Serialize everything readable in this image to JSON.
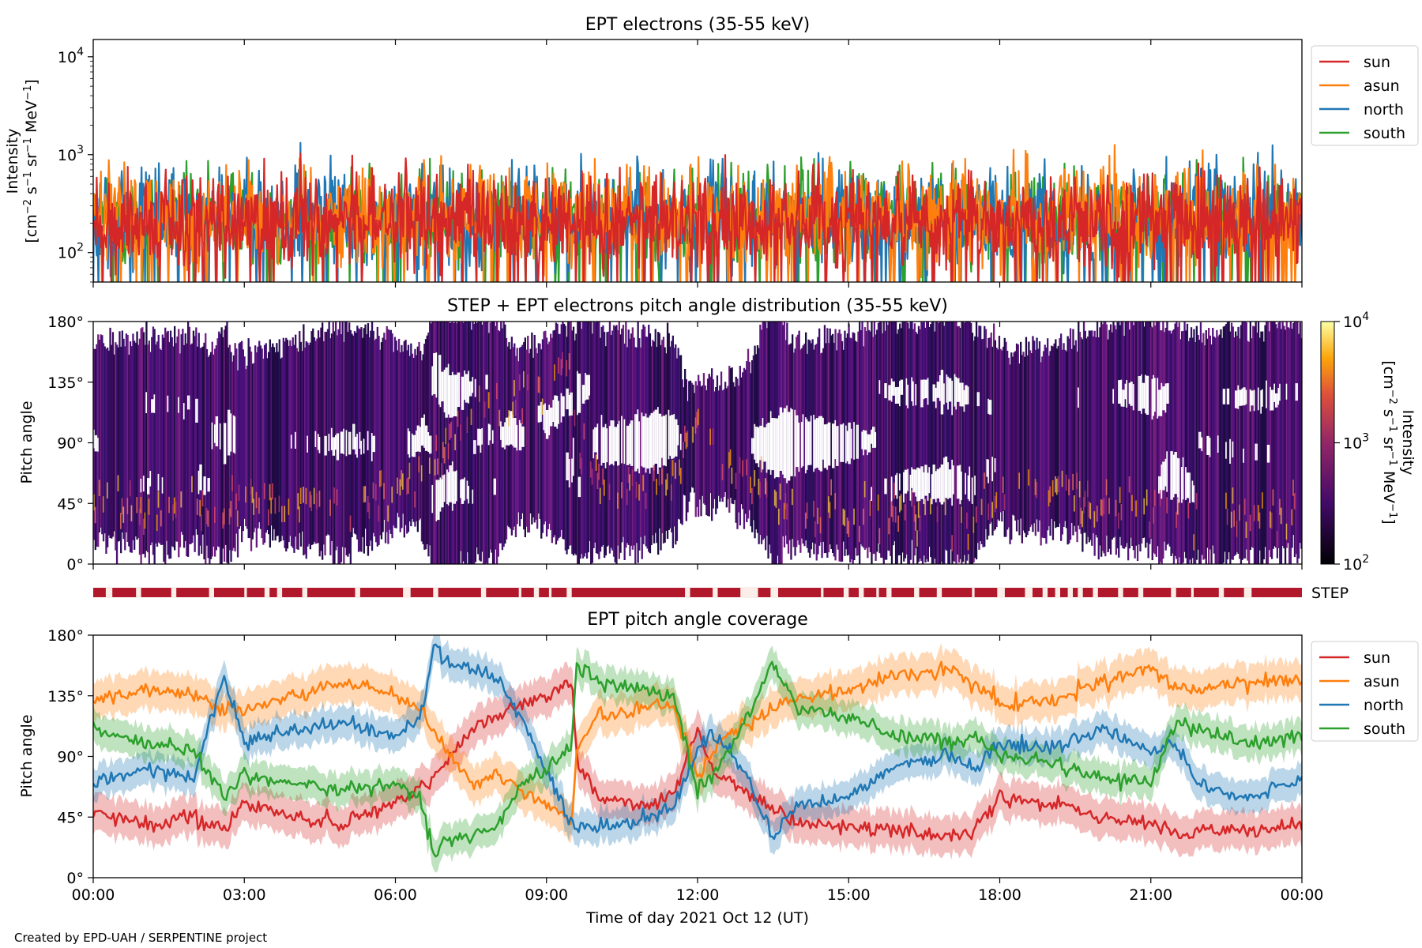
{
  "figure": {
    "credit": "Created by EPD-UAH / SERPENTINE project",
    "xlabel": "Time of day 2021 Oct 12 (UT)"
  },
  "colors": {
    "sun": "#d62728",
    "asun": "#ff7f0e",
    "north": "#1f77b4",
    "south": "#2ca02c",
    "step_bar": "#b2182b",
    "step_gap": "#fbeee8"
  },
  "chart_data": [
    {
      "type": "line",
      "title": "EPT electrons (35-55 keV)",
      "ylabel_line1": "Intensity",
      "ylabel_line2_html": "[cm<tspan dy='-7' font-size='13'>−2</tspan><tspan dy='7'> s</tspan><tspan dy='-7' font-size='13'>−1</tspan><tspan dy='7'> sr</tspan><tspan dy='-7' font-size='13'>−1</tspan><tspan dy='7'> MeV</tspan><tspan dy='-7' font-size='13'>−1</tspan><tspan dy='7'>]</tspan>",
      "yscale": "log",
      "ylim": [
        50,
        15000
      ],
      "yticks": [
        100,
        1000,
        10000
      ],
      "ytick_labels": [
        "10",
        "10",
        "10"
      ],
      "ytick_exps": [
        "2",
        "3",
        "4"
      ],
      "xlim_hours": [
        0,
        24
      ],
      "legend": {
        "placement": "upper-right-outside",
        "entries": [
          "sun",
          "asun",
          "north",
          "south"
        ]
      },
      "series": [
        {
          "name": "sun",
          "typical": 220,
          "spread": 0.32
        },
        {
          "name": "asun",
          "typical": 240,
          "spread": 0.33
        },
        {
          "name": "north",
          "typical": 230,
          "spread": 0.33
        },
        {
          "name": "south",
          "typical": 230,
          "spread": 0.32
        }
      ]
    },
    {
      "type": "heatmap",
      "title": "STEP + EPT electrons pitch angle distribution (35-55 keV)",
      "ylabel": "Pitch angle",
      "ylim": [
        0,
        180
      ],
      "ytick_labels": [
        "0°",
        "45°",
        "90°",
        "135°",
        "180°"
      ],
      "xlim_hours": [
        0,
        24
      ],
      "colorbar": {
        "label": "Intensity",
        "units_html": "[cm<tspan dy='-7' font-size='13'>−2</tspan><tspan dy='7'> s</tspan><tspan dy='-7' font-size='13'>−1</tspan><tspan dy='7'> sr</tspan><tspan dy='-7' font-size='13'>−1</tspan><tspan dy='7'> MeV</tspan><tspan dy='-7' font-size='13'>−1</tspan><tspan dy='7'>]</tspan>",
        "scale": "log",
        "range": [
          100,
          10000
        ],
        "tick_base": [
          "10",
          "10",
          "10"
        ],
        "tick_exps": [
          "2",
          "3",
          "4"
        ],
        "colormap": "inferno"
      }
    },
    {
      "type": "bar",
      "label": "STEP",
      "coverage_gaps_hours": [
        [
          0.25,
          0.38
        ],
        [
          0.85,
          0.95
        ],
        [
          1.55,
          1.65
        ],
        [
          2.3,
          2.4
        ],
        [
          3.0,
          3.05
        ],
        [
          3.4,
          3.5
        ],
        [
          3.65,
          3.75
        ],
        [
          4.15,
          4.25
        ],
        [
          5.2,
          5.3
        ],
        [
          6.15,
          6.3
        ],
        [
          6.75,
          6.85
        ],
        [
          7.7,
          7.8
        ],
        [
          8.45,
          8.5
        ],
        [
          8.75,
          8.85
        ],
        [
          9.05,
          9.1
        ],
        [
          9.4,
          9.5
        ],
        [
          11.75,
          11.85
        ],
        [
          12.3,
          12.4
        ],
        [
          12.85,
          13.2
        ],
        [
          13.45,
          13.6
        ],
        [
          14.45,
          14.5
        ],
        [
          14.9,
          15.0
        ],
        [
          15.2,
          15.3
        ],
        [
          15.55,
          15.6
        ],
        [
          15.75,
          15.85
        ],
        [
          16.3,
          16.4
        ],
        [
          16.75,
          16.85
        ],
        [
          17.45,
          17.5
        ],
        [
          17.95,
          18.1
        ],
        [
          18.5,
          18.65
        ],
        [
          18.85,
          18.95
        ],
        [
          19.1,
          19.2
        ],
        [
          19.35,
          19.45
        ],
        [
          19.55,
          19.65
        ],
        [
          19.85,
          19.95
        ],
        [
          20.35,
          20.45
        ],
        [
          20.75,
          20.85
        ],
        [
          21.4,
          21.5
        ],
        [
          21.8,
          21.85
        ],
        [
          22.35,
          22.45
        ],
        [
          22.85,
          23.0
        ]
      ]
    },
    {
      "type": "line",
      "title": "EPT pitch angle coverage",
      "ylabel": "Pitch angle",
      "ylim": [
        0,
        180
      ],
      "ytick_labels": [
        "0°",
        "45°",
        "90°",
        "135°",
        "180°"
      ],
      "xlim_hours": [
        0,
        24
      ],
      "xtick_labels": [
        "00:00",
        "03:00",
        "06:00",
        "09:00",
        "12:00",
        "15:00",
        "18:00",
        "21:00",
        "00:00"
      ],
      "xlabel": "Time of day 2021 Oct 12 (UT)",
      "legend": {
        "placement": "upper-right-outside",
        "entries": [
          "sun",
          "asun",
          "north",
          "south"
        ]
      },
      "series": [
        {
          "name": "sun",
          "band_halfwidth": 14,
          "points": [
            [
              0,
              50
            ],
            [
              1,
              40
            ],
            [
              2,
              45
            ],
            [
              2.6,
              35
            ],
            [
              3,
              55
            ],
            [
              4,
              45
            ],
            [
              5,
              40
            ],
            [
              6,
              55
            ],
            [
              6.5,
              65
            ],
            [
              7,
              85
            ],
            [
              7.5,
              110
            ],
            [
              8,
              120
            ],
            [
              8.5,
              130
            ],
            [
              9,
              135
            ],
            [
              9.5,
              145
            ],
            [
              9.6,
              90
            ],
            [
              10,
              60
            ],
            [
              11,
              55
            ],
            [
              11.5,
              60
            ],
            [
              12,
              110
            ],
            [
              12.3,
              80
            ],
            [
              13,
              60
            ],
            [
              13.5,
              50
            ],
            [
              14,
              40
            ],
            [
              15,
              38
            ],
            [
              16,
              35
            ],
            [
              17,
              30
            ],
            [
              17.5,
              35
            ],
            [
              18,
              60
            ],
            [
              19,
              55
            ],
            [
              20,
              45
            ],
            [
              21,
              40
            ],
            [
              21.5,
              30
            ],
            [
              22,
              35
            ],
            [
              23,
              35
            ],
            [
              24,
              40
            ]
          ]
        },
        {
          "name": "asun",
          "band_halfwidth": 14,
          "points": [
            [
              0,
              130
            ],
            [
              1,
              140
            ],
            [
              2,
              135
            ],
            [
              2.6,
              125
            ],
            [
              3,
              125
            ],
            [
              4,
              135
            ],
            [
              5,
              145
            ],
            [
              6,
              135
            ],
            [
              6.5,
              125
            ],
            [
              7,
              95
            ],
            [
              7.5,
              70
            ],
            [
              8,
              75
            ],
            [
              8.5,
              65
            ],
            [
              9,
              55
            ],
            [
              9.5,
              40
            ],
            [
              9.6,
              95
            ],
            [
              10,
              120
            ],
            [
              11,
              125
            ],
            [
              11.5,
              130
            ],
            [
              12,
              75
            ],
            [
              12.3,
              95
            ],
            [
              13,
              115
            ],
            [
              13.5,
              125
            ],
            [
              14,
              135
            ],
            [
              15,
              140
            ],
            [
              16,
              150
            ],
            [
              17,
              155
            ],
            [
              17.5,
              145
            ],
            [
              18,
              130
            ],
            [
              19,
              130
            ],
            [
              20,
              145
            ],
            [
              21,
              155
            ],
            [
              21.5,
              140
            ],
            [
              22,
              140
            ],
            [
              23,
              145
            ],
            [
              24,
              145
            ]
          ]
        },
        {
          "name": "north",
          "band_halfwidth": 12,
          "points": [
            [
              0,
              70
            ],
            [
              1,
              80
            ],
            [
              2,
              75
            ],
            [
              2.6,
              150
            ],
            [
              3,
              100
            ],
            [
              4,
              110
            ],
            [
              5,
              115
            ],
            [
              6,
              105
            ],
            [
              6.5,
              120
            ],
            [
              6.8,
              175
            ],
            [
              7,
              160
            ],
            [
              7.5,
              155
            ],
            [
              8,
              150
            ],
            [
              8.5,
              120
            ],
            [
              9,
              80
            ],
            [
              9.5,
              40
            ],
            [
              10,
              35
            ],
            [
              11,
              45
            ],
            [
              11.5,
              50
            ],
            [
              12,
              95
            ],
            [
              12.3,
              110
            ],
            [
              13,
              75
            ],
            [
              13.5,
              30
            ],
            [
              14,
              55
            ],
            [
              15,
              60
            ],
            [
              16,
              85
            ],
            [
              17,
              90
            ],
            [
              17.5,
              80
            ],
            [
              18,
              100
            ],
            [
              19,
              95
            ],
            [
              20,
              110
            ],
            [
              21,
              95
            ],
            [
              21.5,
              100
            ],
            [
              22,
              65
            ],
            [
              23,
              60
            ],
            [
              24,
              75
            ]
          ]
        },
        {
          "name": "south",
          "band_halfwidth": 12,
          "points": [
            [
              0,
              110
            ],
            [
              1,
              100
            ],
            [
              2,
              95
            ],
            [
              2.6,
              60
            ],
            [
              3,
              75
            ],
            [
              4,
              70
            ],
            [
              5,
              65
            ],
            [
              6,
              70
            ],
            [
              6.5,
              55
            ],
            [
              6.8,
              15
            ],
            [
              7,
              30
            ],
            [
              7.5,
              30
            ],
            [
              8,
              35
            ],
            [
              8.5,
              70
            ],
            [
              9,
              80
            ],
            [
              9.5,
              100
            ],
            [
              9.6,
              160
            ],
            [
              10,
              145
            ],
            [
              11,
              140
            ],
            [
              11.5,
              135
            ],
            [
              12,
              65
            ],
            [
              12.3,
              75
            ],
            [
              13,
              120
            ],
            [
              13.5,
              160
            ],
            [
              14,
              125
            ],
            [
              15,
              120
            ],
            [
              16,
              105
            ],
            [
              17,
              100
            ],
            [
              17.5,
              105
            ],
            [
              18,
              90
            ],
            [
              19,
              85
            ],
            [
              20,
              75
            ],
            [
              21,
              70
            ],
            [
              21.5,
              115
            ],
            [
              22,
              110
            ],
            [
              23,
              100
            ],
            [
              24,
              105
            ]
          ]
        }
      ]
    }
  ]
}
